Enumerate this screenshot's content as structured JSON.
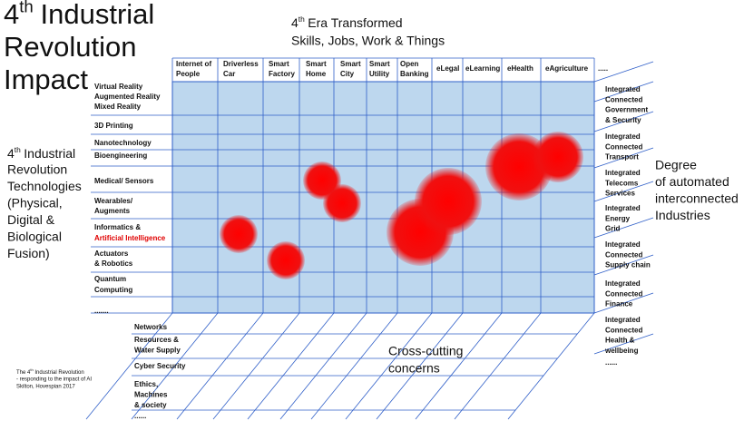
{
  "title": {
    "ordinal": "4",
    "sup": "th",
    "line1": "Industrial",
    "line2": "Revolution",
    "line3": "Impact"
  },
  "era": {
    "ordinal": "4",
    "sup": "th",
    "line1": "Era Transformed",
    "line2": "Skills, Jobs, Work & Things"
  },
  "technologies_heading": {
    "ordinal": "4",
    "sup": "th",
    "line1": "Industrial",
    "lines": [
      "Revolution",
      "Technologies",
      "(Physical,",
      "Digital &",
      "Biological",
      "Fusion)"
    ]
  },
  "columns": [
    [
      "Internet of",
      "People"
    ],
    [
      "Driverless",
      "Car"
    ],
    [
      "Smart",
      "Factory"
    ],
    [
      "Smart",
      "Home"
    ],
    [
      "Smart",
      "City"
    ],
    [
      "Smart",
      "Utility"
    ],
    [
      "Open",
      "Banking"
    ],
    [
      "eLegal"
    ],
    [
      "eLearning"
    ],
    [
      "eHealth"
    ],
    [
      "eAgriculture"
    ],
    [
      "....."
    ]
  ],
  "rows": [
    [
      "Virtual Reality",
      "Augmented Reality",
      "Mixed Reality"
    ],
    [
      "3D Printing"
    ],
    [
      "Nanotechnology"
    ],
    [
      "Bioengineering"
    ],
    [
      "Medical/ Sensors"
    ],
    [
      "Wearables/",
      "Augments"
    ],
    [
      "Informatics &",
      "Artificial Intelligence"
    ],
    [
      "Actuators",
      "& Robotics"
    ],
    [
      "Quantum",
      "Computing"
    ],
    [
      "......."
    ]
  ],
  "industries": [
    [
      "Integrated",
      "Connected",
      "Government",
      "& Security"
    ],
    [
      "Integrated",
      "Connected",
      "Transport"
    ],
    [
      "Integrated",
      "Telecoms",
      "Services"
    ],
    [
      "Integrated",
      "Energy",
      "Grid"
    ],
    [
      "Integrated",
      "Connected",
      "Supply chain"
    ],
    [
      "Integrated",
      "Connected",
      "Finance"
    ],
    [
      "Integrated",
      "Connected",
      "Health &",
      "wellbeing"
    ],
    [
      "......"
    ]
  ],
  "degree": [
    "Degree",
    "of automated",
    "interconnected",
    "Industries"
  ],
  "concerns": [
    [
      "Networks"
    ],
    [
      "Resources &",
      "Water Supply"
    ],
    [
      "Cyber Security"
    ],
    [
      "Ethics,",
      "Machines",
      "& society"
    ],
    [
      "......"
    ]
  ],
  "concerns_heading": [
    "Cross-cutting",
    "concerns"
  ],
  "citation": {
    "start": "The 4",
    "sup": "th",
    "end": " Industrial Revolution",
    "lines": [
      "- responding to the impact of AI",
      "Skilton, Hovespian 2017"
    ]
  }
}
